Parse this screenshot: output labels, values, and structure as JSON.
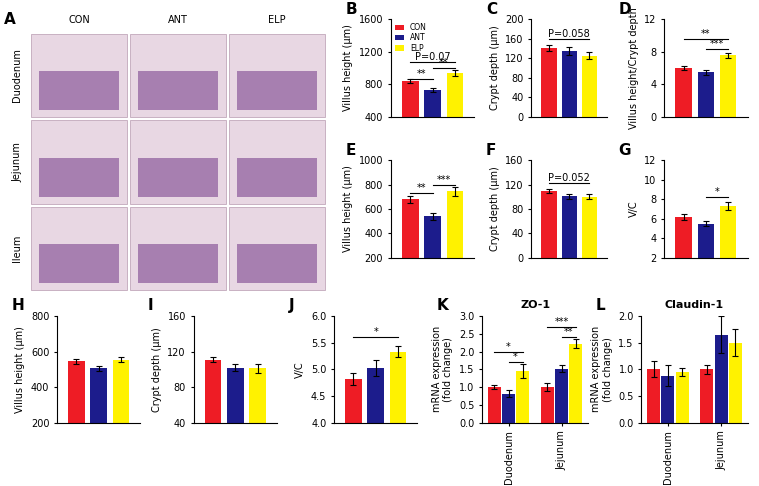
{
  "image_panel": {
    "panel": "A",
    "columns": [
      "CON",
      "ANT",
      "ELP"
    ],
    "rows": [
      "Duodenum",
      "Jejunum",
      "Ileum"
    ]
  },
  "chart_data": [
    {
      "type": "bar",
      "panel": "B",
      "categories": [
        null
      ],
      "ylabel": "Villus height (μm)",
      "ylim": [
        400,
        1600
      ],
      "yticks": [
        400,
        800,
        1200,
        1600
      ],
      "legend": "upper left",
      "series": [
        {
          "name": "CON",
          "color": "#ee1c25",
          "values": [
            840
          ],
          "errors": [
            20
          ]
        },
        {
          "name": "ANT",
          "color": "#1c1c8c",
          "values": [
            730
          ],
          "errors": [
            25
          ]
        },
        {
          "name": "ELP",
          "color": "#fff200",
          "values": [
            940
          ],
          "errors": [
            40
          ]
        }
      ],
      "annotations": [
        {
          "text": "**",
          "between": [
            0,
            1
          ],
          "y": 860
        },
        {
          "text": "**",
          "between": [
            1,
            2
          ],
          "y": 1000
        },
        {
          "text": "P=0.07",
          "between": [
            0,
            2
          ],
          "y": 1080
        }
      ]
    },
    {
      "type": "bar",
      "panel": "C",
      "categories": [
        null
      ],
      "ylabel": "Crypt depth (μm)",
      "ylim": [
        0,
        200
      ],
      "yticks": [
        0,
        40,
        80,
        120,
        160,
        200
      ],
      "series": [
        {
          "color": "#ee1c25",
          "values": [
            142
          ],
          "errors": [
            6
          ]
        },
        {
          "color": "#1c1c8c",
          "values": [
            135
          ],
          "errors": [
            8
          ]
        },
        {
          "color": "#fff200",
          "values": [
            125
          ],
          "errors": [
            7
          ]
        }
      ],
      "annotations": [
        {
          "text": "P=0.058",
          "between": [
            0,
            2
          ],
          "y": 160
        }
      ]
    },
    {
      "type": "bar",
      "panel": "D",
      "categories": [
        null
      ],
      "ylabel": "Villus height/Crypt depth",
      "ylim": [
        0,
        12
      ],
      "yticks": [
        0,
        4,
        8,
        12
      ],
      "series": [
        {
          "color": "#ee1c25",
          "values": [
            6.0
          ],
          "errors": [
            0.3
          ]
        },
        {
          "color": "#1c1c8c",
          "values": [
            5.5
          ],
          "errors": [
            0.3
          ]
        },
        {
          "color": "#fff200",
          "values": [
            7.6
          ],
          "errors": [
            0.3
          ]
        }
      ],
      "annotations": [
        {
          "text": "***",
          "between": [
            1,
            2
          ],
          "y": 8.4
        },
        {
          "text": "**",
          "between": [
            0,
            2
          ],
          "y": 9.6
        }
      ]
    },
    {
      "type": "bar",
      "panel": "E",
      "categories": [
        null
      ],
      "ylabel": "Villus height (μm)",
      "ylim": [
        200,
        1000
      ],
      "yticks": [
        200,
        400,
        600,
        800,
        1000
      ],
      "series": [
        {
          "color": "#ee1c25",
          "values": [
            680
          ],
          "errors": [
            30
          ]
        },
        {
          "color": "#1c1c8c",
          "values": [
            540
          ],
          "errors": [
            30
          ]
        },
        {
          "color": "#fff200",
          "values": [
            745
          ],
          "errors": [
            40
          ]
        }
      ],
      "annotations": [
        {
          "text": "**",
          "between": [
            0,
            1
          ],
          "y": 730
        },
        {
          "text": "***",
          "between": [
            1,
            2
          ],
          "y": 800
        }
      ]
    },
    {
      "type": "bar",
      "panel": "F",
      "categories": [
        null
      ],
      "ylabel": "Crypt depth (μm)",
      "ylim": [
        0,
        160
      ],
      "yticks": [
        0,
        40,
        80,
        120,
        160
      ],
      "series": [
        {
          "color": "#ee1c25",
          "values": [
            110
          ],
          "errors": [
            3
          ]
        },
        {
          "color": "#1c1c8c",
          "values": [
            101
          ],
          "errors": [
            4
          ]
        },
        {
          "color": "#fff200",
          "values": [
            100
          ],
          "errors": [
            4
          ]
        }
      ],
      "annotations": [
        {
          "text": "P=0.052",
          "between": [
            0,
            2
          ],
          "y": 122
        }
      ]
    },
    {
      "type": "bar",
      "panel": "G",
      "categories": [
        null
      ],
      "ylabel": "V/C",
      "ylim": [
        2,
        12
      ],
      "yticks": [
        2,
        4,
        6,
        8,
        10,
        12
      ],
      "series": [
        {
          "color": "#ee1c25",
          "values": [
            6.2
          ],
          "errors": [
            0.3
          ]
        },
        {
          "color": "#1c1c8c",
          "values": [
            5.5
          ],
          "errors": [
            0.3
          ]
        },
        {
          "color": "#fff200",
          "values": [
            7.3
          ],
          "errors": [
            0.4
          ]
        }
      ],
      "annotations": [
        {
          "text": "*",
          "between": [
            1,
            2
          ],
          "y": 8.2
        }
      ]
    },
    {
      "type": "bar",
      "panel": "H",
      "categories": [
        null
      ],
      "ylabel": "Villus height (μm)",
      "ylim": [
        200,
        800
      ],
      "yticks": [
        200,
        400,
        600,
        800
      ],
      "series": [
        {
          "color": "#ee1c25",
          "values": [
            545
          ],
          "errors": [
            15
          ]
        },
        {
          "color": "#1c1c8c",
          "values": [
            505
          ],
          "errors": [
            15
          ]
        },
        {
          "color": "#fff200",
          "values": [
            555
          ],
          "errors": [
            15
          ]
        }
      ]
    },
    {
      "type": "bar",
      "panel": "I",
      "categories": [
        null
      ],
      "ylabel": "Crypt depth (μm)",
      "ylim": [
        40,
        160
      ],
      "yticks": [
        40,
        80,
        120,
        160
      ],
      "series": [
        {
          "color": "#ee1c25",
          "values": [
            111
          ],
          "errors": [
            3
          ]
        },
        {
          "color": "#1c1c8c",
          "values": [
            102
          ],
          "errors": [
            4
          ]
        },
        {
          "color": "#fff200",
          "values": [
            101
          ],
          "errors": [
            5
          ]
        }
      ]
    },
    {
      "type": "bar",
      "panel": "J",
      "categories": [
        null
      ],
      "ylabel": "V/C",
      "ylim": [
        4.0,
        6.0
      ],
      "yticks": [
        {
          "value": 4.0,
          "label": "4.0"
        },
        4.5,
        {
          "value": 5.0,
          "label": "5.0"
        },
        5.5,
        {
          "value": 6.0,
          "label": "6.0"
        }
      ],
      "series": [
        {
          "color": "#ee1c25",
          "values": [
            4.82
          ],
          "errors": [
            0.12
          ]
        },
        {
          "color": "#1c1c8c",
          "values": [
            5.02
          ],
          "errors": [
            0.15
          ]
        },
        {
          "color": "#fff200",
          "values": [
            5.33
          ],
          "errors": [
            0.1
          ]
        }
      ],
      "annotations": [
        {
          "text": "*",
          "between": [
            0,
            2
          ],
          "y": 5.6
        }
      ]
    },
    {
      "type": "bar",
      "panel": "K",
      "title": "ZO-1",
      "categories": [
        "Duodenum",
        "Jejunum"
      ],
      "ylabel": "mRNA expression\n(fold change)",
      "ylim": [
        0,
        3.0
      ],
      "yticks": [
        {
          "value": 0,
          "label": "0.0"
        },
        0.5,
        {
          "value": 1.0,
          "label": "1.0"
        },
        1.5,
        {
          "value": 2.0,
          "label": "2.0"
        },
        2.5,
        {
          "value": 3.0,
          "label": "3.0"
        }
      ],
      "series": [
        {
          "color": "#ee1c25",
          "values": [
            1.0,
            1.0
          ],
          "errors": [
            0.05,
            0.12
          ]
        },
        {
          "color": "#1c1c8c",
          "values": [
            0.82,
            1.52
          ],
          "errors": [
            0.1,
            0.1
          ]
        },
        {
          "color": "#fff200",
          "values": [
            1.45,
            2.22
          ],
          "errors": [
            0.2,
            0.12
          ]
        }
      ],
      "annotations": [
        {
          "text": "*",
          "category": "Duodenum",
          "between": [
            1,
            2
          ],
          "y": 1.7
        },
        {
          "text": "*",
          "category": "Duodenum",
          "between": [
            0,
            2
          ],
          "y": 2.0
        },
        {
          "text": "**",
          "category": "Jejunum",
          "between": [
            1,
            2
          ],
          "y": 2.4
        },
        {
          "text": "***",
          "category": "Jejunum",
          "between": [
            0,
            2
          ],
          "y": 2.7
        }
      ]
    },
    {
      "type": "bar",
      "panel": "L",
      "title": "Claudin-1",
      "categories": [
        "Duodenum",
        "Jejunum"
      ],
      "ylabel": "mRNA expression\n(fold change)",
      "ylim": [
        0,
        2.0
      ],
      "yticks": [
        {
          "value": 0,
          "label": "0.0"
        },
        0.5,
        {
          "value": 1.0,
          "label": "1.0"
        },
        1.5,
        {
          "value": 2.0,
          "label": "2.0"
        }
      ],
      "series": [
        {
          "color": "#ee1c25",
          "values": [
            1.0,
            1.0
          ],
          "errors": [
            0.15,
            0.08
          ]
        },
        {
          "color": "#1c1c8c",
          "values": [
            0.88,
            1.65
          ],
          "errors": [
            0.2,
            0.35
          ]
        },
        {
          "color": "#fff200",
          "values": [
            0.95,
            1.5
          ],
          "errors": [
            0.08,
            0.25
          ]
        }
      ]
    }
  ]
}
